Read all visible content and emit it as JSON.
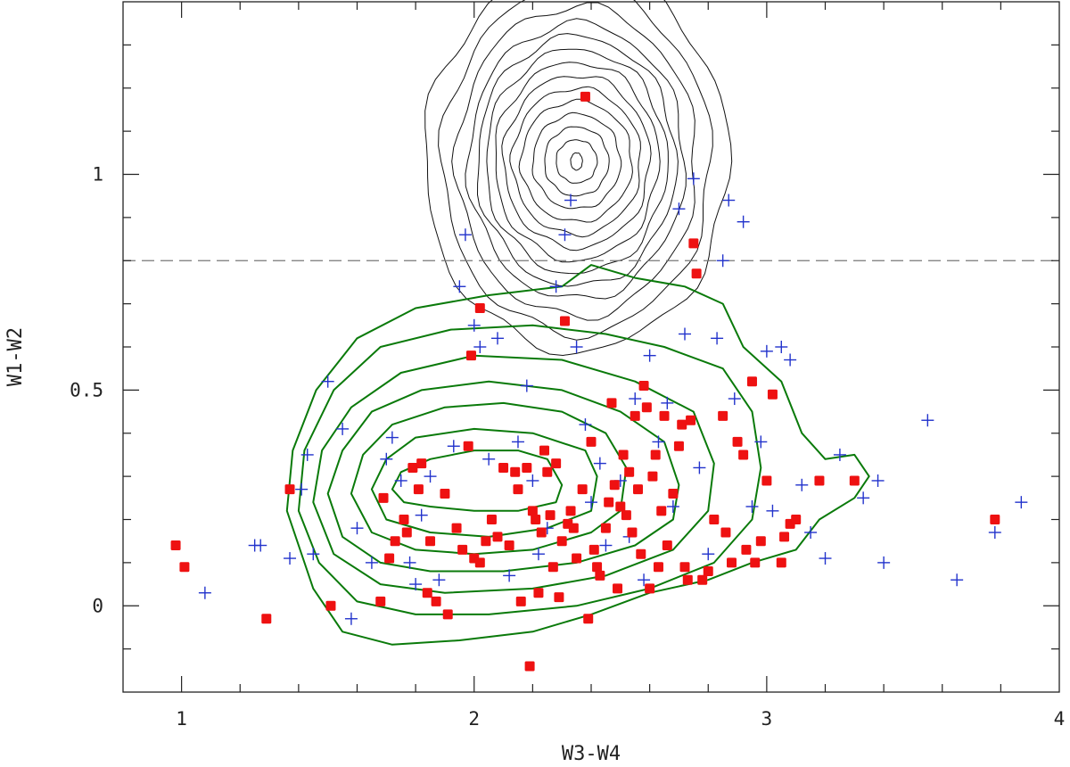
{
  "chart_data": {
    "type": "scatter",
    "title": "",
    "xlabel": "W3-W4",
    "ylabel": "W1-W2",
    "xlim": [
      0.8,
      4.0
    ],
    "ylim": [
      -0.2,
      1.4
    ],
    "xticks": [
      1,
      2,
      3,
      4
    ],
    "xtick_labels": [
      "1",
      "2",
      "3",
      "4"
    ],
    "yticks": [
      0,
      0.5,
      1
    ],
    "ytick_labels": [
      "0",
      "0.5",
      "1"
    ],
    "grid": false,
    "legend": "none",
    "reference_line": {
      "axis": "y",
      "value": 0.8,
      "style": "dashed",
      "color": "#777777"
    },
    "colors": {
      "red_markers": "#ee1111",
      "blue_markers": "#2233cc",
      "green_contours": "#0a7a0a",
      "black_contours": "#111111"
    },
    "contours_black": {
      "center": [
        2.35,
        1.03
      ],
      "levels": [
        {
          "rx": 0.02,
          "ry": 0.02
        },
        {
          "rx": 0.07,
          "ry": 0.05
        },
        {
          "rx": 0.11,
          "ry": 0.08
        },
        {
          "rx": 0.15,
          "ry": 0.11
        },
        {
          "rx": 0.19,
          "ry": 0.14
        },
        {
          "rx": 0.22,
          "ry": 0.17
        },
        {
          "rx": 0.25,
          "ry": 0.2
        },
        {
          "rx": 0.28,
          "ry": 0.23
        },
        {
          "rx": 0.31,
          "ry": 0.26
        },
        {
          "rx": 0.34,
          "ry": 0.29
        },
        {
          "rx": 0.37,
          "ry": 0.32
        },
        {
          "rx": 0.41,
          "ry": 0.36
        },
        {
          "rx": 0.46,
          "ry": 0.4
        },
        {
          "rx": 0.52,
          "ry": 0.44
        }
      ]
    },
    "contours_green": [
      [
        [
          1.72,
          0.27
        ],
        [
          1.75,
          0.31
        ],
        [
          1.85,
          0.34
        ],
        [
          2.0,
          0.36
        ],
        [
          2.15,
          0.36
        ],
        [
          2.25,
          0.34
        ],
        [
          2.3,
          0.28
        ],
        [
          2.28,
          0.24
        ],
        [
          2.15,
          0.22
        ],
        [
          2.0,
          0.22
        ],
        [
          1.85,
          0.23
        ],
        [
          1.76,
          0.24
        ]
      ],
      [
        [
          1.65,
          0.27
        ],
        [
          1.7,
          0.34
        ],
        [
          1.8,
          0.39
        ],
        [
          2.0,
          0.41
        ],
        [
          2.2,
          0.4
        ],
        [
          2.38,
          0.36
        ],
        [
          2.42,
          0.3
        ],
        [
          2.4,
          0.22
        ],
        [
          2.25,
          0.18
        ],
        [
          2.05,
          0.16
        ],
        [
          1.85,
          0.17
        ],
        [
          1.7,
          0.2
        ]
      ],
      [
        [
          1.58,
          0.26
        ],
        [
          1.62,
          0.35
        ],
        [
          1.72,
          0.42
        ],
        [
          1.9,
          0.46
        ],
        [
          2.1,
          0.47
        ],
        [
          2.3,
          0.45
        ],
        [
          2.45,
          0.4
        ],
        [
          2.52,
          0.32
        ],
        [
          2.5,
          0.22
        ],
        [
          2.4,
          0.17
        ],
        [
          2.2,
          0.13
        ],
        [
          2.0,
          0.12
        ],
        [
          1.8,
          0.13
        ],
        [
          1.65,
          0.17
        ]
      ],
      [
        [
          1.5,
          0.26
        ],
        [
          1.55,
          0.36
        ],
        [
          1.65,
          0.45
        ],
        [
          1.82,
          0.5
        ],
        [
          2.05,
          0.52
        ],
        [
          2.3,
          0.5
        ],
        [
          2.5,
          0.45
        ],
        [
          2.65,
          0.38
        ],
        [
          2.7,
          0.28
        ],
        [
          2.68,
          0.2
        ],
        [
          2.55,
          0.14
        ],
        [
          2.35,
          0.1
        ],
        [
          2.1,
          0.08
        ],
        [
          1.85,
          0.08
        ],
        [
          1.68,
          0.1
        ],
        [
          1.55,
          0.16
        ]
      ],
      [
        [
          1.45,
          0.24
        ],
        [
          1.48,
          0.36
        ],
        [
          1.58,
          0.46
        ],
        [
          1.75,
          0.54
        ],
        [
          2.0,
          0.58
        ],
        [
          2.3,
          0.57
        ],
        [
          2.55,
          0.52
        ],
        [
          2.75,
          0.45
        ],
        [
          2.82,
          0.33
        ],
        [
          2.8,
          0.22
        ],
        [
          2.68,
          0.13
        ],
        [
          2.45,
          0.07
        ],
        [
          2.2,
          0.04
        ],
        [
          1.9,
          0.03
        ],
        [
          1.68,
          0.05
        ],
        [
          1.52,
          0.12
        ]
      ],
      [
        [
          1.4,
          0.22
        ],
        [
          1.42,
          0.36
        ],
        [
          1.52,
          0.5
        ],
        [
          1.68,
          0.6
        ],
        [
          1.92,
          0.64
        ],
        [
          2.2,
          0.65
        ],
        [
          2.45,
          0.63
        ],
        [
          2.65,
          0.6
        ],
        [
          2.85,
          0.55
        ],
        [
          2.95,
          0.45
        ],
        [
          2.98,
          0.32
        ],
        [
          2.95,
          0.2
        ],
        [
          2.82,
          0.1
        ],
        [
          2.6,
          0.04
        ],
        [
          2.35,
          0.0
        ],
        [
          2.05,
          -0.02
        ],
        [
          1.8,
          -0.02
        ],
        [
          1.6,
          0.01
        ],
        [
          1.47,
          0.1
        ]
      ],
      [
        [
          1.36,
          0.22
        ],
        [
          1.38,
          0.36
        ],
        [
          1.46,
          0.5
        ],
        [
          1.6,
          0.62
        ],
        [
          1.8,
          0.69
        ],
        [
          2.05,
          0.72
        ],
        [
          2.3,
          0.74
        ],
        [
          2.4,
          0.79
        ],
        [
          2.55,
          0.76
        ],
        [
          2.72,
          0.74
        ],
        [
          2.85,
          0.7
        ],
        [
          2.92,
          0.6
        ],
        [
          3.05,
          0.52
        ],
        [
          3.12,
          0.4
        ],
        [
          3.2,
          0.34
        ],
        [
          3.3,
          0.35
        ],
        [
          3.35,
          0.3
        ],
        [
          3.3,
          0.25
        ],
        [
          3.18,
          0.2
        ],
        [
          3.1,
          0.13
        ],
        [
          2.95,
          0.1
        ],
        [
          2.8,
          0.06
        ],
        [
          2.6,
          0.03
        ],
        [
          2.4,
          -0.02
        ],
        [
          2.2,
          -0.06
        ],
        [
          1.95,
          -0.08
        ],
        [
          1.72,
          -0.09
        ],
        [
          1.55,
          -0.06
        ],
        [
          1.45,
          0.04
        ]
      ]
    ],
    "series": [
      {
        "marker": "filled-square",
        "color": "#ee1111",
        "points": [
          [
            0.98,
            0.14
          ],
          [
            1.01,
            0.09
          ],
          [
            1.29,
            -0.03
          ],
          [
            1.37,
            0.27
          ],
          [
            1.51,
            0.0
          ],
          [
            1.68,
            0.01
          ],
          [
            1.69,
            0.25
          ],
          [
            1.71,
            0.11
          ],
          [
            1.73,
            0.15
          ],
          [
            1.76,
            0.2
          ],
          [
            1.77,
            0.17
          ],
          [
            1.79,
            0.32
          ],
          [
            1.81,
            0.27
          ],
          [
            1.82,
            0.33
          ],
          [
            1.84,
            0.03
          ],
          [
            1.85,
            0.15
          ],
          [
            1.87,
            0.01
          ],
          [
            1.9,
            0.26
          ],
          [
            1.91,
            -0.02
          ],
          [
            1.94,
            0.18
          ],
          [
            1.96,
            0.13
          ],
          [
            1.98,
            0.37
          ],
          [
            1.99,
            0.58
          ],
          [
            2.0,
            0.11
          ],
          [
            2.02,
            0.1
          ],
          [
            2.02,
            0.69
          ],
          [
            2.04,
            0.15
          ],
          [
            2.06,
            0.2
          ],
          [
            2.08,
            0.16
          ],
          [
            2.1,
            0.32
          ],
          [
            2.12,
            0.14
          ],
          [
            2.14,
            0.31
          ],
          [
            2.15,
            0.27
          ],
          [
            2.16,
            0.01
          ],
          [
            2.18,
            0.32
          ],
          [
            2.19,
            -0.14
          ],
          [
            2.2,
            0.22
          ],
          [
            2.21,
            0.2
          ],
          [
            2.22,
            0.03
          ],
          [
            2.23,
            0.17
          ],
          [
            2.24,
            0.36
          ],
          [
            2.25,
            0.31
          ],
          [
            2.26,
            0.21
          ],
          [
            2.27,
            0.09
          ],
          [
            2.28,
            0.33
          ],
          [
            2.29,
            0.02
          ],
          [
            2.3,
            0.15
          ],
          [
            2.31,
            0.66
          ],
          [
            2.32,
            0.19
          ],
          [
            2.33,
            0.22
          ],
          [
            2.34,
            0.18
          ],
          [
            2.35,
            0.11
          ],
          [
            2.37,
            0.27
          ],
          [
            2.38,
            1.18
          ],
          [
            2.39,
            -0.03
          ],
          [
            2.4,
            0.38
          ],
          [
            2.41,
            0.13
          ],
          [
            2.42,
            0.09
          ],
          [
            2.43,
            0.07
          ],
          [
            2.45,
            0.18
          ],
          [
            2.46,
            0.24
          ],
          [
            2.47,
            0.47
          ],
          [
            2.48,
            0.28
          ],
          [
            2.49,
            0.04
          ],
          [
            2.5,
            0.23
          ],
          [
            2.51,
            0.35
          ],
          [
            2.52,
            0.21
          ],
          [
            2.53,
            0.31
          ],
          [
            2.54,
            0.17
          ],
          [
            2.55,
            0.44
          ],
          [
            2.56,
            0.27
          ],
          [
            2.57,
            0.12
          ],
          [
            2.58,
            0.51
          ],
          [
            2.59,
            0.46
          ],
          [
            2.6,
            0.04
          ],
          [
            2.61,
            0.3
          ],
          [
            2.62,
            0.35
          ],
          [
            2.63,
            0.09
          ],
          [
            2.64,
            0.22
          ],
          [
            2.65,
            0.44
          ],
          [
            2.66,
            0.14
          ],
          [
            2.68,
            0.26
          ],
          [
            2.7,
            0.37
          ],
          [
            2.71,
            0.42
          ],
          [
            2.72,
            0.09
          ],
          [
            2.73,
            0.06
          ],
          [
            2.74,
            0.43
          ],
          [
            2.75,
            0.84
          ],
          [
            2.76,
            0.77
          ],
          [
            2.78,
            0.06
          ],
          [
            2.8,
            0.08
          ],
          [
            2.82,
            0.2
          ],
          [
            2.85,
            0.44
          ],
          [
            2.86,
            0.17
          ],
          [
            2.88,
            0.1
          ],
          [
            2.9,
            0.38
          ],
          [
            2.92,
            0.35
          ],
          [
            2.93,
            0.13
          ],
          [
            2.95,
            0.52
          ],
          [
            2.96,
            0.1
          ],
          [
            2.98,
            0.15
          ],
          [
            3.0,
            0.29
          ],
          [
            3.02,
            0.49
          ],
          [
            3.05,
            0.1
          ],
          [
            3.06,
            0.16
          ],
          [
            3.08,
            0.19
          ],
          [
            3.1,
            0.2
          ],
          [
            3.18,
            0.29
          ],
          [
            3.3,
            0.29
          ],
          [
            3.78,
            0.2
          ]
        ]
      },
      {
        "marker": "plus",
        "color": "#2233cc",
        "points": [
          [
            1.08,
            0.03
          ],
          [
            1.25,
            0.14
          ],
          [
            1.27,
            0.14
          ],
          [
            1.37,
            0.11
          ],
          [
            1.41,
            0.27
          ],
          [
            1.43,
            0.35
          ],
          [
            1.45,
            0.12
          ],
          [
            1.5,
            0.52
          ],
          [
            1.55,
            0.41
          ],
          [
            1.58,
            -0.03
          ],
          [
            1.6,
            0.18
          ],
          [
            1.65,
            0.1
          ],
          [
            1.7,
            0.34
          ],
          [
            1.72,
            0.39
          ],
          [
            1.75,
            0.29
          ],
          [
            1.78,
            0.1
          ],
          [
            1.8,
            0.05
          ],
          [
            1.82,
            0.21
          ],
          [
            1.85,
            0.3
          ],
          [
            1.88,
            0.06
          ],
          [
            1.93,
            0.37
          ],
          [
            1.95,
            0.74
          ],
          [
            1.97,
            0.86
          ],
          [
            2.0,
            0.65
          ],
          [
            2.02,
            0.6
          ],
          [
            2.05,
            0.34
          ],
          [
            2.08,
            0.62
          ],
          [
            2.12,
            0.07
          ],
          [
            2.15,
            0.38
          ],
          [
            2.18,
            0.51
          ],
          [
            2.2,
            0.29
          ],
          [
            2.22,
            0.12
          ],
          [
            2.25,
            0.18
          ],
          [
            2.28,
            0.74
          ],
          [
            2.31,
            0.86
          ],
          [
            2.33,
            0.94
          ],
          [
            2.35,
            0.6
          ],
          [
            2.38,
            0.42
          ],
          [
            2.4,
            0.24
          ],
          [
            2.43,
            0.33
          ],
          [
            2.45,
            0.14
          ],
          [
            2.5,
            0.29
          ],
          [
            2.53,
            0.16
          ],
          [
            2.55,
            0.48
          ],
          [
            2.58,
            0.06
          ],
          [
            2.6,
            0.58
          ],
          [
            2.63,
            0.38
          ],
          [
            2.66,
            0.47
          ],
          [
            2.68,
            0.23
          ],
          [
            2.7,
            0.92
          ],
          [
            2.72,
            0.63
          ],
          [
            2.75,
            0.99
          ],
          [
            2.77,
            0.32
          ],
          [
            2.8,
            0.12
          ],
          [
            2.83,
            0.62
          ],
          [
            2.85,
            0.8
          ],
          [
            2.87,
            0.94
          ],
          [
            2.89,
            0.48
          ],
          [
            2.92,
            0.89
          ],
          [
            2.95,
            0.23
          ],
          [
            2.98,
            0.38
          ],
          [
            3.0,
            0.59
          ],
          [
            3.02,
            0.22
          ],
          [
            3.05,
            0.6
          ],
          [
            3.08,
            0.57
          ],
          [
            3.12,
            0.28
          ],
          [
            3.15,
            0.17
          ],
          [
            3.2,
            0.11
          ],
          [
            3.25,
            0.35
          ],
          [
            3.33,
            0.25
          ],
          [
            3.38,
            0.29
          ],
          [
            3.4,
            0.1
          ],
          [
            3.55,
            0.43
          ],
          [
            3.65,
            0.06
          ],
          [
            3.78,
            0.17
          ],
          [
            3.87,
            0.24
          ]
        ]
      }
    ]
  }
}
